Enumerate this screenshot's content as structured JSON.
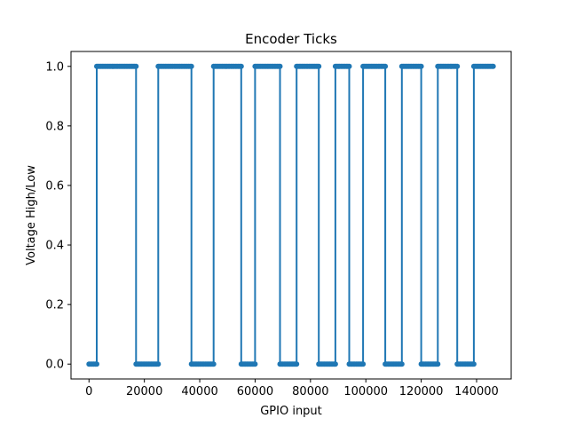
{
  "chart_data": {
    "type": "line",
    "title": "Encoder Ticks",
    "xlabel": "GPIO input",
    "ylabel": "Voltage High/Low",
    "xlim": [
      -6500,
      152500
    ],
    "ylim": [
      -0.05,
      1.05
    ],
    "x_ticks": [
      0,
      20000,
      40000,
      60000,
      80000,
      100000,
      120000,
      140000
    ],
    "x_tick_labels": [
      "0",
      "20000",
      "40000",
      "60000",
      "80000",
      "100000",
      "120000",
      "140000"
    ],
    "y_ticks": [
      0.0,
      0.2,
      0.4,
      0.6,
      0.8,
      1.0
    ],
    "y_tick_labels": [
      "0.0",
      "0.2",
      "0.4",
      "0.6",
      "0.8",
      "1.0"
    ],
    "grid": false,
    "legend": "none",
    "line_color": "#1f77b4",
    "marker": "circle",
    "series": [
      {
        "x": [
          0,
          2800,
          2800,
          17000,
          17000,
          25000,
          25000,
          37000,
          37000,
          45000,
          45000,
          55000,
          55000,
          60000,
          60000,
          69000,
          69000,
          75000,
          75000,
          83000,
          83000,
          89000,
          89000,
          94000,
          94000,
          99000,
          99000,
          107000,
          107000,
          113000,
          113000,
          120000,
          120000,
          126000,
          126000,
          133000,
          133000,
          139000,
          139000,
          146000
        ],
        "y": [
          0,
          0,
          1,
          1,
          0,
          0,
          1,
          1,
          0,
          0,
          1,
          1,
          0,
          0,
          1,
          1,
          0,
          0,
          1,
          1,
          0,
          0,
          1,
          1,
          0,
          0,
          1,
          1,
          0,
          0,
          1,
          1,
          0,
          0,
          1,
          1,
          0,
          0,
          1,
          1
        ]
      }
    ]
  }
}
